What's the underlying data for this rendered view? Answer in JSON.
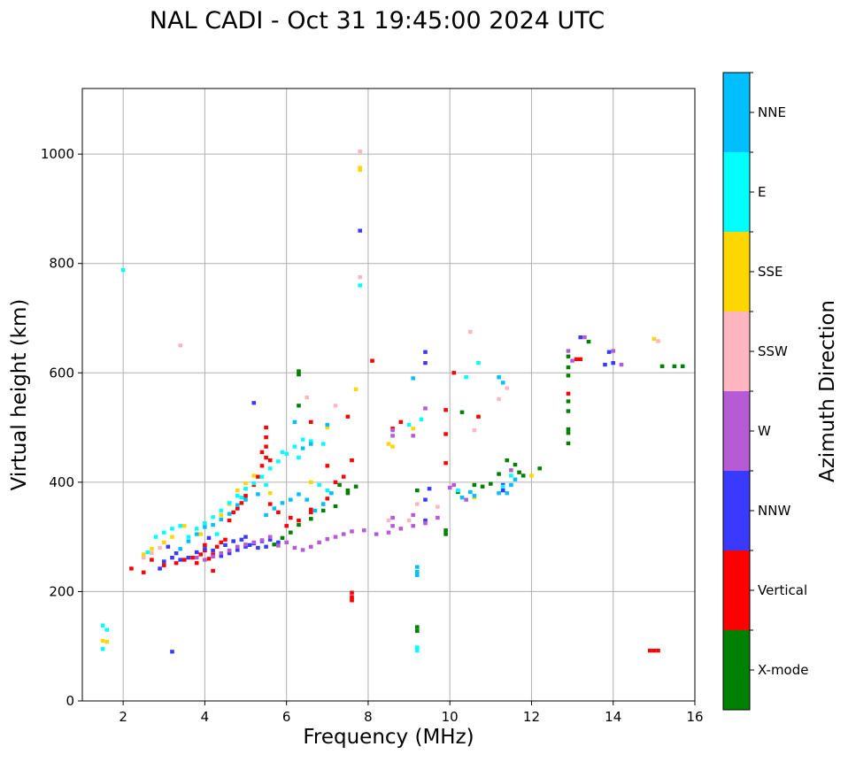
{
  "chart_data": {
    "type": "scatter",
    "title": "NAL CADI - Oct 31 19:45:00 2024 UTC",
    "xlabel": "Frequency (MHz)",
    "ylabel": "Virtual height (km)",
    "xlim": [
      1,
      16
    ],
    "ylim": [
      0,
      1120
    ],
    "xticks": [
      2,
      4,
      6,
      8,
      10,
      12,
      14,
      16
    ],
    "yticks": [
      0,
      200,
      400,
      600,
      800,
      1000
    ],
    "grid": true,
    "cell_size": {
      "freq_mhz": 0.1,
      "height_km": 7
    },
    "colorbar": {
      "label": "Azimuth Direction",
      "categories": [
        "X-mode",
        "Vertical",
        "NNW",
        "W",
        "SSW",
        "SSE",
        "E",
        "NNE"
      ],
      "colors": [
        "#008000",
        "#ff0000",
        "#3a3aff",
        "#b65ad6",
        "#ffb6c1",
        "#ffd700",
        "#00ffff",
        "#00bfff"
      ]
    },
    "series": [
      {
        "name": "X-mode",
        "category_index": 0,
        "points": [
          [
            5.7,
            286
          ],
          [
            5.9,
            298
          ],
          [
            6.1,
            308
          ],
          [
            6.3,
            322
          ],
          [
            6.6,
            333
          ],
          [
            6.9,
            348
          ],
          [
            7.2,
            356
          ],
          [
            7.5,
            380
          ],
          [
            7.7,
            392
          ],
          [
            6.3,
            603
          ],
          [
            6.3,
            597
          ],
          [
            6.3,
            540
          ],
          [
            7.3,
            395
          ],
          [
            7.5,
            385
          ],
          [
            9.2,
            135
          ],
          [
            9.2,
            128
          ],
          [
            9.9,
            312
          ],
          [
            9.9,
            305
          ],
          [
            10.3,
            528
          ],
          [
            10.6,
            395
          ],
          [
            10.8,
            392
          ],
          [
            11.0,
            397
          ],
          [
            11.2,
            415
          ],
          [
            11.4,
            440
          ],
          [
            11.6,
            432
          ],
          [
            11.7,
            418
          ],
          [
            11.8,
            412
          ],
          [
            12.2,
            425
          ],
          [
            12.9,
            630
          ],
          [
            12.9,
            610
          ],
          [
            12.9,
            595
          ],
          [
            12.9,
            548
          ],
          [
            12.9,
            530
          ],
          [
            12.9,
            497
          ],
          [
            12.9,
            490
          ],
          [
            12.9,
            471
          ],
          [
            13.4,
            657
          ],
          [
            15.5,
            612
          ],
          [
            15.2,
            612
          ],
          [
            15.7,
            612
          ],
          [
            9.2,
            385
          ],
          [
            10.2,
            382
          ]
        ]
      },
      {
        "name": "Vertical",
        "category_index": 1,
        "points": [
          [
            2.2,
            242
          ],
          [
            2.5,
            235
          ],
          [
            2.7,
            258
          ],
          [
            3.0,
            248
          ],
          [
            3.3,
            252
          ],
          [
            3.5,
            258
          ],
          [
            3.7,
            262
          ],
          [
            3.9,
            268
          ],
          [
            4.0,
            275
          ],
          [
            4.1,
            260
          ],
          [
            4.2,
            268
          ],
          [
            4.3,
            282
          ],
          [
            4.4,
            290
          ],
          [
            4.5,
            295
          ],
          [
            4.0,
            285
          ],
          [
            3.8,
            252
          ],
          [
            4.2,
            238
          ],
          [
            4.6,
            330
          ],
          [
            4.7,
            345
          ],
          [
            4.8,
            352
          ],
          [
            4.9,
            362
          ],
          [
            5.0,
            375
          ],
          [
            5.2,
            395
          ],
          [
            5.3,
            410
          ],
          [
            5.4,
            430
          ],
          [
            5.5,
            445
          ],
          [
            5.5,
            465
          ],
          [
            5.5,
            482
          ],
          [
            5.5,
            500
          ],
          [
            5.4,
            455
          ],
          [
            5.6,
            440
          ],
          [
            6.1,
            335
          ],
          [
            6.6,
            350
          ],
          [
            6.9,
            360
          ],
          [
            7.0,
            370
          ],
          [
            7.2,
            400
          ],
          [
            7.4,
            410
          ],
          [
            7.0,
            430
          ],
          [
            7.6,
            440
          ],
          [
            5.6,
            360
          ],
          [
            5.8,
            345
          ],
          [
            6.0,
            320
          ],
          [
            6.3,
            330
          ],
          [
            6.6,
            345
          ],
          [
            7.5,
            520
          ],
          [
            6.6,
            510
          ],
          [
            7.6,
            198
          ],
          [
            7.6,
            190
          ],
          [
            7.6,
            184
          ],
          [
            8.1,
            622
          ],
          [
            8.6,
            498
          ],
          [
            8.8,
            510
          ],
          [
            9.9,
            435
          ],
          [
            9.9,
            488
          ],
          [
            9.9,
            532
          ],
          [
            10.1,
            600
          ],
          [
            10.7,
            520
          ],
          [
            12.9,
            562
          ],
          [
            13.2,
            625
          ],
          [
            13.1,
            625
          ],
          [
            15.0,
            92
          ],
          [
            14.9,
            92
          ],
          [
            15.1,
            92
          ]
        ]
      },
      {
        "name": "NNW",
        "category_index": 2,
        "points": [
          [
            2.9,
            242
          ],
          [
            3.0,
            255
          ],
          [
            3.2,
            262
          ],
          [
            3.4,
            258
          ],
          [
            3.6,
            262
          ],
          [
            3.8,
            272
          ],
          [
            4.0,
            278
          ],
          [
            4.2,
            275
          ],
          [
            4.4,
            265
          ],
          [
            4.6,
            270
          ],
          [
            4.8,
            276
          ],
          [
            5.0,
            282
          ],
          [
            5.2,
            288
          ],
          [
            5.4,
            292
          ],
          [
            5.6,
            295
          ],
          [
            4.5,
            285
          ],
          [
            4.7,
            292
          ],
          [
            4.9,
            295
          ],
          [
            5.1,
            285
          ],
          [
            5.3,
            280
          ],
          [
            3.3,
            270
          ],
          [
            3.1,
            282
          ],
          [
            4.1,
            298
          ],
          [
            5.0,
            300
          ],
          [
            5.5,
            282
          ],
          [
            5.8,
            290
          ],
          [
            5.2,
            545
          ],
          [
            9.4,
            638
          ],
          [
            9.4,
            618
          ],
          [
            7.8,
            860
          ],
          [
            9.5,
            388
          ],
          [
            9.4,
            368
          ],
          [
            9.4,
            330
          ],
          [
            11.3,
            385
          ],
          [
            11.3,
            395
          ],
          [
            13.2,
            665
          ],
          [
            13.8,
            615
          ],
          [
            14.0,
            618
          ],
          [
            13.9,
            638
          ],
          [
            3.2,
            90
          ]
        ]
      },
      {
        "name": "W",
        "category_index": 3,
        "points": [
          [
            3.8,
            262
          ],
          [
            4.0,
            258
          ],
          [
            4.2,
            264
          ],
          [
            4.4,
            270
          ],
          [
            4.6,
            275
          ],
          [
            4.8,
            282
          ],
          [
            5.0,
            286
          ],
          [
            5.2,
            290
          ],
          [
            5.4,
            294
          ],
          [
            5.6,
            300
          ],
          [
            5.8,
            284
          ],
          [
            6.0,
            290
          ],
          [
            6.2,
            280
          ],
          [
            6.4,
            276
          ],
          [
            6.6,
            282
          ],
          [
            6.8,
            290
          ],
          [
            7.0,
            296
          ],
          [
            7.2,
            300
          ],
          [
            7.4,
            305
          ],
          [
            7.6,
            310
          ],
          [
            7.9,
            312
          ],
          [
            8.2,
            305
          ],
          [
            8.5,
            308
          ],
          [
            8.8,
            315
          ],
          [
            9.1,
            320
          ],
          [
            9.4,
            325
          ],
          [
            9.7,
            335
          ],
          [
            8.6,
            320
          ],
          [
            9.1,
            340
          ],
          [
            8.6,
            335
          ],
          [
            8.6,
            485
          ],
          [
            8.6,
            495
          ],
          [
            9.1,
            485
          ],
          [
            9.4,
            535
          ],
          [
            10.0,
            390
          ],
          [
            10.1,
            395
          ],
          [
            10.4,
            368
          ],
          [
            11.5,
            422
          ],
          [
            13.0,
            622
          ],
          [
            13.3,
            665
          ],
          [
            14.0,
            640
          ],
          [
            14.2,
            615
          ],
          [
            12.9,
            640
          ]
        ]
      },
      {
        "name": "SSW",
        "category_index": 4,
        "points": [
          [
            2.5,
            262
          ],
          [
            2.7,
            270
          ],
          [
            2.9,
            280
          ],
          [
            3.0,
            290
          ],
          [
            3.4,
            650
          ],
          [
            7.8,
            1005
          ],
          [
            7.8,
            775
          ],
          [
            6.5,
            555
          ],
          [
            7.2,
            540
          ],
          [
            8.5,
            330
          ],
          [
            9.2,
            360
          ],
          [
            9.7,
            355
          ],
          [
            9.0,
            330
          ],
          [
            10.5,
            675
          ],
          [
            10.6,
            495
          ],
          [
            11.2,
            552
          ],
          [
            11.4,
            572
          ],
          [
            15.1,
            658
          ]
        ]
      },
      {
        "name": "SSE",
        "category_index": 5,
        "points": [
          [
            1.5,
            110
          ],
          [
            1.6,
            108
          ],
          [
            2.5,
            268
          ],
          [
            2.7,
            278
          ],
          [
            3.0,
            290
          ],
          [
            3.2,
            300
          ],
          [
            3.5,
            320
          ],
          [
            3.9,
            305
          ],
          [
            4.4,
            340
          ],
          [
            4.6,
            360
          ],
          [
            4.8,
            385
          ],
          [
            5.0,
            398
          ],
          [
            5.2,
            412
          ],
          [
            5.6,
            380
          ],
          [
            6.6,
            400
          ],
          [
            7.0,
            500
          ],
          [
            7.7,
            570
          ],
          [
            7.8,
            975
          ],
          [
            7.8,
            971
          ],
          [
            8.5,
            470
          ],
          [
            8.6,
            465
          ],
          [
            9.1,
            498
          ],
          [
            10.6,
            372
          ],
          [
            12.0,
            412
          ],
          [
            15.0,
            662
          ]
        ]
      },
      {
        "name": "E",
        "category_index": 6,
        "points": [
          [
            1.5,
            138
          ],
          [
            1.6,
            130
          ],
          [
            1.5,
            95
          ],
          [
            2.0,
            788
          ],
          [
            2.6,
            272
          ],
          [
            2.8,
            300
          ],
          [
            3.0,
            308
          ],
          [
            3.2,
            315
          ],
          [
            3.4,
            320
          ],
          [
            3.6,
            300
          ],
          [
            3.8,
            315
          ],
          [
            4.0,
            325
          ],
          [
            4.2,
            336
          ],
          [
            4.4,
            348
          ],
          [
            4.6,
            362
          ],
          [
            4.8,
            375
          ],
          [
            5.0,
            388
          ],
          [
            5.2,
            398
          ],
          [
            5.4,
            410
          ],
          [
            5.6,
            425
          ],
          [
            5.8,
            438
          ],
          [
            6.0,
            452
          ],
          [
            6.2,
            465
          ],
          [
            6.4,
            478
          ],
          [
            6.6,
            475
          ],
          [
            4.3,
            305
          ],
          [
            4.9,
            372
          ],
          [
            5.5,
            395
          ],
          [
            5.9,
            455
          ],
          [
            6.3,
            445
          ],
          [
            6.9,
            470
          ],
          [
            7.0,
            385
          ],
          [
            6.8,
            395
          ],
          [
            7.8,
            760
          ],
          [
            9.2,
            98
          ],
          [
            9.2,
            92
          ],
          [
            9.0,
            505
          ],
          [
            9.3,
            515
          ],
          [
            10.2,
            385
          ],
          [
            10.4,
            592
          ],
          [
            10.7,
            618
          ],
          [
            11.3,
            392
          ],
          [
            11.5,
            412
          ]
        ]
      },
      {
        "name": "NNE",
        "category_index": 7,
        "points": [
          [
            3.4,
            278
          ],
          [
            3.6,
            292
          ],
          [
            3.8,
            305
          ],
          [
            4.0,
            318
          ],
          [
            4.2,
            322
          ],
          [
            4.4,
            332
          ],
          [
            4.6,
            342
          ],
          [
            4.8,
            358
          ],
          [
            5.0,
            368
          ],
          [
            5.3,
            378
          ],
          [
            5.5,
            340
          ],
          [
            5.7,
            352
          ],
          [
            5.9,
            362
          ],
          [
            6.1,
            368
          ],
          [
            6.3,
            378
          ],
          [
            6.5,
            368
          ],
          [
            6.7,
            348
          ],
          [
            6.9,
            360
          ],
          [
            7.1,
            380
          ],
          [
            6.6,
            470
          ],
          [
            7.0,
            505
          ],
          [
            6.4,
            462
          ],
          [
            6.2,
            510
          ],
          [
            9.2,
            245
          ],
          [
            9.2,
            236
          ],
          [
            9.2,
            230
          ],
          [
            9.1,
            590
          ],
          [
            10.3,
            372
          ],
          [
            10.5,
            382
          ],
          [
            10.6,
            375
          ],
          [
            11.2,
            380
          ],
          [
            11.4,
            380
          ],
          [
            11.5,
            395
          ],
          [
            11.6,
            405
          ],
          [
            11.2,
            592
          ],
          [
            11.3,
            582
          ]
        ]
      }
    ]
  }
}
